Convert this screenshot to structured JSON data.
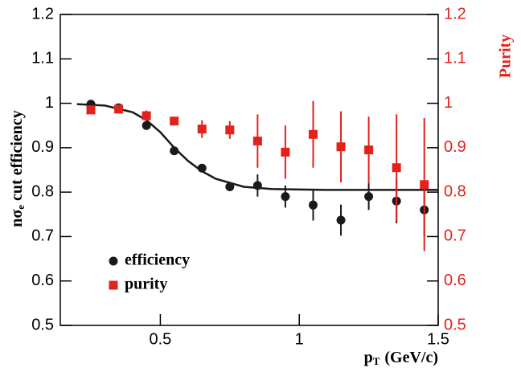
{
  "chart_data": {
    "type": "scatter",
    "y_label": {
      "main": "nσ",
      "sub": "e",
      "rest": "cut efficiency"
    },
    "x_label": {
      "main": "p",
      "sub": "T",
      "rest": "(GeV/c)"
    },
    "y2_label": "Purity",
    "xlim": [
      0.14,
      1.5
    ],
    "xticks": [
      0.5,
      1,
      1.5
    ],
    "ylim": [
      0.5,
      1.2
    ],
    "yticks": [
      0.5,
      0.6,
      0.7,
      0.8,
      0.9,
      1,
      1.1,
      1.2
    ],
    "y2lim": [
      0.5,
      1.2
    ],
    "y2ticks": [
      0.5,
      0.6,
      0.7,
      0.8,
      0.9,
      1,
      1.1,
      1.2
    ],
    "legend": "lower left",
    "series": [
      {
        "name": "efficiency",
        "color": "#1a1a1a",
        "marker": "circle",
        "x": [
          0.25,
          0.35,
          0.45,
          0.55,
          0.65,
          0.75,
          0.85,
          0.95,
          1.05,
          1.15,
          1.25,
          1.35,
          1.45
        ],
        "values": [
          0.998,
          0.99,
          0.95,
          0.893,
          0.854,
          0.812,
          0.815,
          0.79,
          0.771,
          0.737,
          0.79,
          0.78,
          0.76
        ],
        "errors": [
          null,
          null,
          0.008,
          null,
          null,
          0.008,
          0.025,
          0.025,
          0.035,
          0.035,
          0.03,
          0.05,
          0.06
        ]
      },
      {
        "name": "purity",
        "color": "#e3221c",
        "marker": "square",
        "axis": "y2",
        "x": [
          0.25,
          0.35,
          0.45,
          0.55,
          0.65,
          0.75,
          0.85,
          0.95,
          1.05,
          1.15,
          1.25,
          1.35,
          1.45
        ],
        "values": [
          0.985,
          0.987,
          0.972,
          0.96,
          0.942,
          0.94,
          0.915,
          0.89,
          0.93,
          0.902,
          0.895,
          0.855,
          0.817
        ],
        "errors": [
          0.005,
          0.005,
          0.012,
          0.008,
          0.02,
          0.02,
          0.06,
          0.06,
          0.075,
          0.08,
          0.075,
          0.12,
          0.15
        ]
      }
    ],
    "fit": {
      "color": "#1a1a1a",
      "x": [
        0.2,
        0.3,
        0.4,
        0.45,
        0.5,
        0.55,
        0.6,
        0.65,
        0.7,
        0.8,
        0.9,
        1.0,
        1.1,
        1.2,
        1.3,
        1.4,
        1.5
      ],
      "values": [
        0.998,
        0.995,
        0.98,
        0.962,
        0.935,
        0.9,
        0.87,
        0.847,
        0.83,
        0.812,
        0.807,
        0.806,
        0.805,
        0.805,
        0.805,
        0.805,
        0.805
      ]
    }
  }
}
